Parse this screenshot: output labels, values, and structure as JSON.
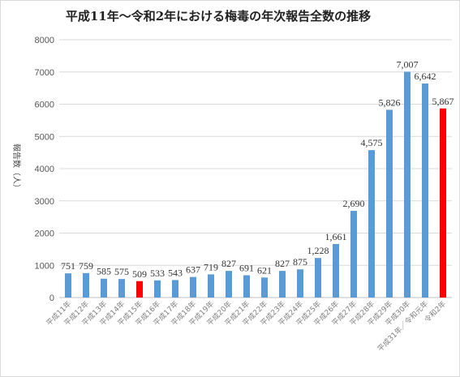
{
  "chart_data": {
    "type": "bar",
    "title": "平成11年〜令和2年における梅毒の年次報告全数の推移",
    "ylabel": "報告数（人）",
    "xlabel": "",
    "ylim": [
      0,
      8000
    ],
    "yticks": [
      0,
      1000,
      2000,
      3000,
      4000,
      5000,
      6000,
      7000,
      8000
    ],
    "grid": true,
    "categories": [
      "平成11年",
      "平成12年",
      "平成13年",
      "平成14年",
      "平成15年",
      "平成16年",
      "平成17年",
      "平成18年",
      "平成19年",
      "平成20年",
      "平成21年",
      "平成22年",
      "平成23年",
      "平成24年",
      "平成25年",
      "平成26年",
      "平成27年",
      "平成28年",
      "平成29年",
      "平成30年",
      "平成31年／令和元年",
      "令和2年"
    ],
    "values": [
      751,
      759,
      585,
      575,
      509,
      533,
      543,
      637,
      719,
      827,
      691,
      621,
      827,
      875,
      1228,
      1661,
      2690,
      4575,
      5826,
      7007,
      6642,
      5867
    ],
    "value_labels": [
      "751",
      "759",
      "585",
      "575",
      "509",
      "533",
      "543",
      "637",
      "719",
      "827",
      "691",
      "621",
      "827",
      "875",
      "1,228",
      "1,661",
      "2,690",
      "4,575",
      "5,826",
      "7,007",
      "6,642",
      "5,867"
    ],
    "colors": {
      "default": "#5b9bd5",
      "highlight": "#ff0000"
    },
    "highlight_indices": [
      4,
      21
    ]
  }
}
